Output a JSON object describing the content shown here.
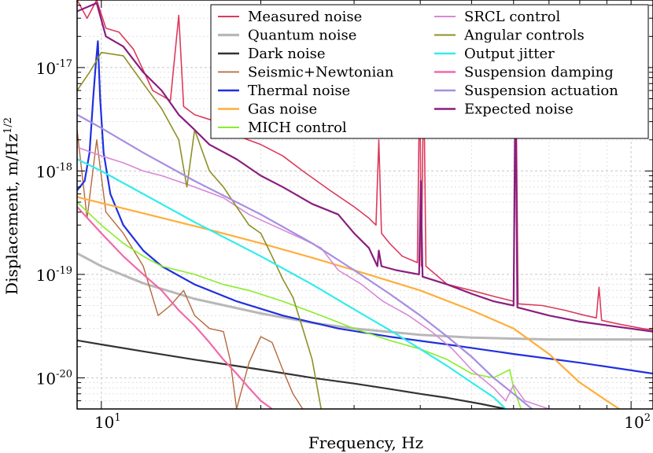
{
  "chart_data": {
    "type": "line",
    "scale": {
      "x": "log",
      "y": "log"
    },
    "xlabel": "Frequency, Hz",
    "ylabel": "Displacement, m/Hz",
    "ylabel_exponent": "1/2",
    "xlim": [
      9.0,
      110.0
    ],
    "ylim": [
      5e-21,
      4.5e-17
    ],
    "x_major_ticks": [
      10,
      100
    ],
    "x_tick_labels": [
      {
        "mantissa": "10",
        "exp": "1"
      },
      {
        "mantissa": "10",
        "exp": "2"
      }
    ],
    "y_major_ticks": [
      1e-20,
      1e-19,
      1e-18,
      1e-17
    ],
    "y_tick_labels": [
      {
        "mantissa": "10",
        "exp": "-20"
      },
      {
        "mantissa": "10",
        "exp": "-19"
      },
      {
        "mantissa": "10",
        "exp": "-18"
      },
      {
        "mantissa": "10",
        "exp": "-17"
      }
    ],
    "grid": true,
    "legend_position": "top-right",
    "legend_columns": 2,
    "series": [
      {
        "name": "Measured noise",
        "color": "#dc3b5d",
        "width": 1.6,
        "points": [
          [
            9.0,
            4.5e-17
          ],
          [
            9.4,
            3e-17
          ],
          [
            9.8,
            4.5e-17
          ],
          [
            10.2,
            2.4e-17
          ],
          [
            10.8,
            2.2e-17
          ],
          [
            11.5,
            1.5e-17
          ],
          [
            12.5,
            6e-18
          ],
          [
            13.5,
            4.8e-18
          ],
          [
            14.0,
            3.2e-17
          ],
          [
            14.3,
            4.2e-18
          ],
          [
            15.0,
            3.5e-18
          ],
          [
            16.5,
            3e-18
          ],
          [
            18.0,
            2.2e-18
          ],
          [
            20.0,
            1.8e-18
          ],
          [
            22.0,
            1.4e-18
          ],
          [
            24.0,
            1e-18
          ],
          [
            27.0,
            6.5e-19
          ],
          [
            30.0,
            4.5e-19
          ],
          [
            32.0,
            3.5e-19
          ],
          [
            33.0,
            3e-19
          ],
          [
            33.4,
            2e-18
          ],
          [
            33.8,
            2.5e-19
          ],
          [
            35.0,
            2e-19
          ],
          [
            37.0,
            1.5e-19
          ],
          [
            39.5,
            1.3e-19
          ],
          [
            39.9,
            9e-18
          ],
          [
            40.2,
            1.2e-19
          ],
          [
            40.6,
            9.5e-18
          ],
          [
            41.0,
            1.2e-19
          ],
          [
            45.0,
            8e-20
          ],
          [
            50.0,
            7e-20
          ],
          [
            56.0,
            6e-20
          ],
          [
            60.0,
            5.5e-20
          ],
          [
            60.6,
            1e-17
          ],
          [
            61.2,
            5.2e-20
          ],
          [
            68.0,
            5e-20
          ],
          [
            75.0,
            4.5e-20
          ],
          [
            82.0,
            4e-20
          ],
          [
            86.0,
            3.8e-20
          ],
          [
            87.0,
            7.5e-20
          ],
          [
            88.0,
            3.6e-20
          ],
          [
            95.0,
            3.3e-20
          ],
          [
            105.0,
            3e-20
          ],
          [
            110.0,
            2.9e-20
          ]
        ]
      },
      {
        "name": "Quantum noise",
        "color": "#b8b8b8",
        "width": 3.0,
        "points": [
          [
            9.0,
            1.6e-19
          ],
          [
            10.0,
            1.2e-19
          ],
          [
            12.0,
            8.2e-20
          ],
          [
            15.0,
            5.8e-20
          ],
          [
            20.0,
            4.2e-20
          ],
          [
            25.0,
            3.4e-20
          ],
          [
            30.0,
            3e-20
          ],
          [
            40.0,
            2.6e-20
          ],
          [
            50.0,
            2.45e-20
          ],
          [
            70.0,
            2.35e-20
          ],
          [
            110.0,
            2.35e-20
          ]
        ]
      },
      {
        "name": "Dark noise",
        "color": "#333333",
        "width": 2.2,
        "points": [
          [
            9.0,
            2.3e-20
          ],
          [
            10.0,
            2.1e-20
          ],
          [
            12.0,
            1.8e-20
          ],
          [
            15.0,
            1.5e-20
          ],
          [
            20.0,
            1.2e-20
          ],
          [
            25.0,
            1e-20
          ],
          [
            30.0,
            8.8e-21
          ],
          [
            35.0,
            7.8e-21
          ],
          [
            40.0,
            7e-21
          ],
          [
            45.0,
            6.4e-21
          ],
          [
            52.0,
            5.6e-21
          ],
          [
            58.0,
            5e-21
          ]
        ]
      },
      {
        "name": "Seismic+Newtonian",
        "color": "#b5693d",
        "width": 1.4,
        "points": [
          [
            9.0,
            2.5e-18
          ],
          [
            9.4,
            3.5e-19
          ],
          [
            9.8,
            2e-18
          ],
          [
            10.2,
            4e-19
          ],
          [
            11.0,
            2.5e-19
          ],
          [
            12.0,
            1.2e-19
          ],
          [
            12.8,
            4e-20
          ],
          [
            13.5,
            5e-20
          ],
          [
            14.3,
            7e-20
          ],
          [
            15.0,
            4e-20
          ],
          [
            16.0,
            3e-20
          ],
          [
            17.0,
            2.8e-20
          ],
          [
            17.5,
            1.5e-20
          ],
          [
            18.0,
            5e-21
          ],
          [
            19.0,
            1.4e-20
          ],
          [
            20.0,
            2.5e-20
          ],
          [
            21.0,
            2.2e-20
          ],
          [
            22.0,
            1.2e-20
          ],
          [
            23.0,
            7e-21
          ],
          [
            24.0,
            5e-21
          ]
        ]
      },
      {
        "name": "Thermal noise",
        "color": "#2030e0",
        "width": 2.2,
        "points": [
          [
            9.0,
            6.5e-19
          ],
          [
            9.3,
            8e-19
          ],
          [
            9.5,
            1.5e-18
          ],
          [
            9.65,
            5e-18
          ],
          [
            9.75,
            1e-17
          ],
          [
            9.85,
            1.8e-17
          ],
          [
            9.95,
            5e-18
          ],
          [
            10.1,
            1.5e-18
          ],
          [
            10.4,
            6e-19
          ],
          [
            11.0,
            3e-19
          ],
          [
            12.0,
            1.7e-19
          ],
          [
            13.0,
            1.2e-19
          ],
          [
            15.0,
            8e-20
          ],
          [
            18.0,
            5.5e-20
          ],
          [
            22.0,
            4e-20
          ],
          [
            28.0,
            3e-20
          ],
          [
            35.0,
            2.5e-20
          ],
          [
            45.0,
            2.1e-20
          ],
          [
            60.0,
            1.7e-20
          ],
          [
            80.0,
            1.4e-20
          ],
          [
            110.0,
            1.1e-20
          ]
        ]
      },
      {
        "name": "Gas noise",
        "color": "#ffae3a",
        "width": 2.2,
        "points": [
          [
            9.0,
            5.6e-19
          ],
          [
            12.0,
            3.9e-19
          ],
          [
            16.0,
            2.7e-19
          ],
          [
            20.0,
            2e-19
          ],
          [
            25.0,
            1.45e-19
          ],
          [
            30.0,
            1.1e-19
          ],
          [
            40.0,
            7e-20
          ],
          [
            50.0,
            4.5e-20
          ],
          [
            60.0,
            3e-20
          ],
          [
            70.0,
            1.7e-20
          ],
          [
            80.0,
            9e-21
          ],
          [
            90.0,
            6e-21
          ],
          [
            95.0,
            5e-21
          ]
        ]
      },
      {
        "name": "MICH control",
        "color": "#88ee2a",
        "width": 1.6,
        "points": [
          [
            9.0,
            5e-19
          ],
          [
            10.0,
            3e-19
          ],
          [
            11.0,
            2e-19
          ],
          [
            12.0,
            1.5e-19
          ],
          [
            13.0,
            1.2e-19
          ],
          [
            15.0,
            1e-19
          ],
          [
            17.0,
            8e-20
          ],
          [
            19.0,
            7e-20
          ],
          [
            22.0,
            5.5e-20
          ],
          [
            26.0,
            4e-20
          ],
          [
            30.0,
            3e-20
          ],
          [
            35.0,
            2.3e-20
          ],
          [
            40.0,
            1.9e-20
          ],
          [
            45.0,
            1.5e-20
          ],
          [
            50.0,
            1.1e-20
          ],
          [
            55.0,
            1e-20
          ],
          [
            59.0,
            1.2e-20
          ],
          [
            60.0,
            8e-21
          ],
          [
            62.0,
            5e-21
          ]
        ]
      },
      {
        "name": "SRCL control",
        "color": "#d888d8",
        "width": 1.6,
        "points": [
          [
            9.0,
            1.7e-18
          ],
          [
            10.0,
            1.4e-18
          ],
          [
            11.0,
            1.2e-18
          ],
          [
            12.0,
            1e-18
          ],
          [
            13.0,
            9e-19
          ],
          [
            15.0,
            7e-19
          ],
          [
            17.0,
            5.5e-19
          ],
          [
            19.0,
            3.8e-19
          ],
          [
            21.0,
            3e-19
          ],
          [
            24.0,
            2.2e-19
          ],
          [
            26.0,
            1.8e-19
          ],
          [
            28.0,
            1.1e-19
          ],
          [
            31.0,
            8e-20
          ],
          [
            34.0,
            5.5e-20
          ],
          [
            38.0,
            4e-20
          ],
          [
            42.0,
            2.8e-20
          ],
          [
            46.0,
            1.9e-20
          ],
          [
            50.0,
            1.2e-20
          ],
          [
            55.0,
            8e-21
          ],
          [
            58.0,
            6e-21
          ],
          [
            60.0,
            8.5e-21
          ],
          [
            63.0,
            6e-21
          ],
          [
            70.0,
            5e-21
          ]
        ]
      },
      {
        "name": "Angular controls",
        "color": "#8e9026",
        "width": 1.6,
        "points": [
          [
            9.0,
            6e-18
          ],
          [
            9.5,
            9e-18
          ],
          [
            10.0,
            1.4e-17
          ],
          [
            11.0,
            1.3e-17
          ],
          [
            12.0,
            7e-18
          ],
          [
            13.0,
            4e-18
          ],
          [
            14.0,
            2e-18
          ],
          [
            14.5,
            7e-19
          ],
          [
            15.0,
            2.5e-18
          ],
          [
            16.0,
            1e-18
          ],
          [
            17.0,
            7e-19
          ],
          [
            18.0,
            4.5e-19
          ],
          [
            19.0,
            3e-19
          ],
          [
            20.0,
            2.5e-19
          ],
          [
            21.0,
            1.5e-19
          ],
          [
            22.0,
            9e-20
          ],
          [
            23.0,
            6e-20
          ],
          [
            24.0,
            3e-20
          ],
          [
            25.0,
            1.5e-20
          ],
          [
            26.0,
            5e-21
          ]
        ]
      },
      {
        "name": "Output jitter",
        "color": "#33ecec",
        "width": 2.2,
        "points": [
          [
            9.0,
            1.3e-18
          ],
          [
            10.0,
            1e-18
          ],
          [
            12.0,
            6e-19
          ],
          [
            15.0,
            3.2e-19
          ],
          [
            20.0,
            1.5e-19
          ],
          [
            25.0,
            8e-20
          ],
          [
            30.0,
            4.6e-20
          ],
          [
            35.0,
            2.9e-20
          ],
          [
            40.0,
            1.9e-20
          ],
          [
            45.0,
            1.3e-20
          ],
          [
            50.0,
            9e-21
          ],
          [
            55.0,
            6.5e-21
          ],
          [
            58.0,
            5e-21
          ]
        ]
      },
      {
        "name": "Suspension damping",
        "color": "#f06aa8",
        "width": 2.2,
        "points": [
          [
            9.0,
            4.5e-19
          ],
          [
            10.0,
            2.5e-19
          ],
          [
            11.0,
            1.5e-19
          ],
          [
            12.0,
            1e-19
          ],
          [
            13.0,
            7e-20
          ],
          [
            14.0,
            4.5e-20
          ],
          [
            15.0,
            3.2e-20
          ],
          [
            16.0,
            2.2e-20
          ],
          [
            17.0,
            1.5e-20
          ],
          [
            18.0,
            1.1e-20
          ],
          [
            19.0,
            8e-21
          ],
          [
            20.0,
            6e-21
          ],
          [
            21.0,
            5e-21
          ]
        ]
      },
      {
        "name": "Suspension actuation",
        "color": "#a78ee0",
        "width": 2.2,
        "points": [
          [
            9.0,
            3.5e-18
          ],
          [
            10.0,
            2.6e-18
          ],
          [
            12.0,
            1.5e-18
          ],
          [
            15.0,
            8e-19
          ],
          [
            20.0,
            3.8e-19
          ],
          [
            25.0,
            2e-19
          ],
          [
            30.0,
            1.1e-19
          ],
          [
            35.0,
            6.5e-20
          ],
          [
            40.0,
            4e-20
          ],
          [
            45.0,
            2.5e-20
          ],
          [
            50.0,
            1.6e-20
          ],
          [
            55.0,
            1e-20
          ],
          [
            60.0,
            7e-21
          ],
          [
            65.0,
            5e-21
          ]
        ]
      },
      {
        "name": "Expected noise",
        "color": "#8a1e7e",
        "width": 2.2,
        "points": [
          [
            9.0,
            3.5e-17
          ],
          [
            9.8,
            4.2e-17
          ],
          [
            10.2,
            2e-17
          ],
          [
            11.0,
            1.6e-17
          ],
          [
            12.0,
            9e-18
          ],
          [
            13.0,
            6e-18
          ],
          [
            14.0,
            3.5e-18
          ],
          [
            15.0,
            2.5e-18
          ],
          [
            16.0,
            1.8e-18
          ],
          [
            18.0,
            1.3e-18
          ],
          [
            20.0,
            9e-19
          ],
          [
            22.0,
            7e-19
          ],
          [
            25.0,
            4.8e-19
          ],
          [
            28.0,
            3.8e-19
          ],
          [
            30.0,
            2.5e-19
          ],
          [
            32.0,
            1.8e-19
          ],
          [
            33.2,
            1.2e-19
          ],
          [
            33.4,
            1.7e-19
          ],
          [
            33.8,
            1.2e-19
          ],
          [
            36.0,
            1.1e-19
          ],
          [
            39.8,
            1e-19
          ],
          [
            40.1,
            8e-19
          ],
          [
            40.4,
            9.5e-20
          ],
          [
            45.0,
            8e-20
          ],
          [
            50.0,
            6.5e-20
          ],
          [
            55.0,
            5.5e-20
          ],
          [
            60.0,
            5e-20
          ],
          [
            60.5,
            9e-18
          ],
          [
            61.0,
            4.8e-20
          ],
          [
            70.0,
            4e-20
          ],
          [
            80.0,
            3.5e-20
          ],
          [
            95.0,
            3.1e-20
          ],
          [
            110.0,
            2.8e-20
          ]
        ]
      }
    ]
  }
}
